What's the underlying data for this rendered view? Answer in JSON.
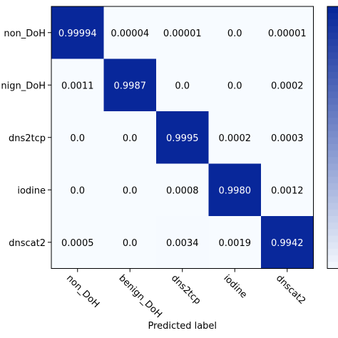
{
  "chart_data": {
    "type": "heatmap",
    "xlabel": "Predicted label",
    "ylabel": "",
    "y_categories": [
      "non_DoH",
      "nign_DoH",
      "dns2tcp",
      "iodine",
      "dnscat2"
    ],
    "x_categories": [
      "non_DoH",
      "benign_DoH",
      "dns2tcp",
      "iodine",
      "dnscat2"
    ],
    "cell_labels": [
      [
        "0.99994",
        "0.00004",
        "0.00001",
        "0.0",
        "0.00001"
      ],
      [
        "0.0011",
        "0.9987",
        "0.0",
        "0.0",
        "0.0002"
      ],
      [
        "0.0",
        "0.0",
        "0.9995",
        "0.0002",
        "0.0003"
      ],
      [
        "0.0",
        "0.0",
        "0.0008",
        "0.9980",
        "0.0012"
      ],
      [
        "0.0005",
        "0.0",
        "0.0034",
        "0.0019",
        "0.9942"
      ]
    ],
    "values": [
      [
        0.99994,
        4e-05,
        1e-05,
        0.0,
        1e-05
      ],
      [
        0.0011,
        0.9987,
        0.0,
        0.0,
        0.0002
      ],
      [
        0.0,
        0.0,
        0.9995,
        0.0002,
        0.0003
      ],
      [
        0.0,
        0.0,
        0.0008,
        0.998,
        0.0012
      ],
      [
        0.0005,
        0.0,
        0.0034,
        0.0019,
        0.9942
      ]
    ],
    "colormap": {
      "low": "#f7fbff",
      "high": "#08306b",
      "diag": "#08279a"
    },
    "colorbar": true
  }
}
